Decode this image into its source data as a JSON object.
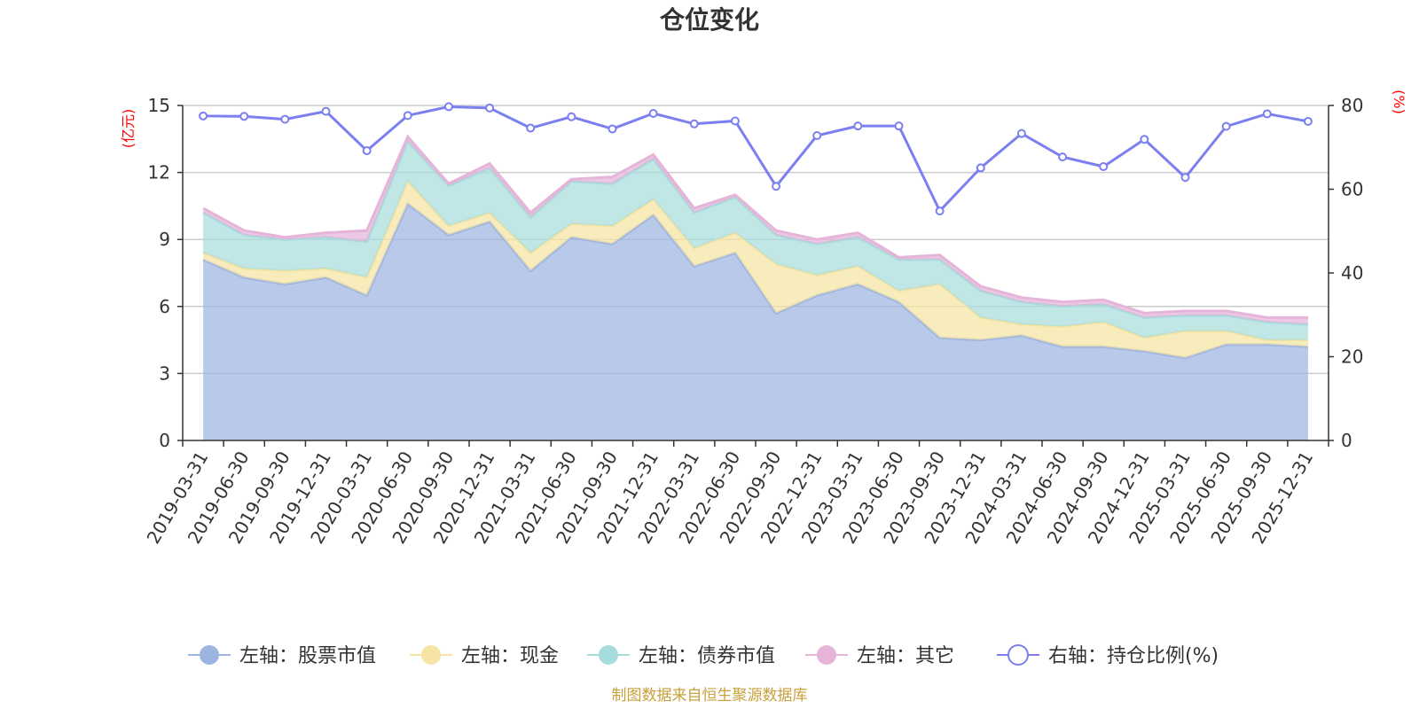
{
  "chart_data": {
    "type": "area",
    "title": "仓位变化",
    "left_axis": {
      "unit": "(亿元)",
      "min": 0,
      "max": 15,
      "ticks": [
        0,
        3,
        6,
        9,
        12,
        15
      ]
    },
    "right_axis": {
      "unit": "(%)",
      "min": 0,
      "max": 80,
      "ticks": [
        0,
        20,
        40,
        60,
        80
      ]
    },
    "categories": [
      "2019-03-31",
      "2019-06-30",
      "2019-09-30",
      "2019-12-31",
      "2020-03-31",
      "2020-06-30",
      "2020-09-30",
      "2020-12-31",
      "2021-03-31",
      "2021-06-30",
      "2021-09-30",
      "2021-12-31",
      "2022-03-31",
      "2022-06-30",
      "2022-09-30",
      "2022-12-31",
      "2023-03-31",
      "2023-06-30",
      "2023-09-30",
      "2023-12-31",
      "2024-03-31",
      "2024-06-30",
      "2024-09-30",
      "2024-12-31",
      "2025-03-31",
      "2025-06-30",
      "2025-09-30",
      "2025-12-31"
    ],
    "series": [
      {
        "name": "左轴：股票市值",
        "axis": "left",
        "stacked": true,
        "color": "#9db4e0",
        "values": [
          8.1,
          7.3,
          7.0,
          7.3,
          6.5,
          10.6,
          9.2,
          9.8,
          7.6,
          9.1,
          8.8,
          10.1,
          7.8,
          8.4,
          5.7,
          6.5,
          7.0,
          6.2,
          4.6,
          4.5,
          4.7,
          4.2,
          4.2,
          4.0,
          3.7,
          4.3,
          4.3,
          4.2
        ]
      },
      {
        "name": "左轴：现金",
        "axis": "left",
        "stacked": true,
        "color": "#f5e4a3",
        "values": [
          0.3,
          0.4,
          0.6,
          0.4,
          0.8,
          1.0,
          0.4,
          0.4,
          0.8,
          0.6,
          0.8,
          0.7,
          0.8,
          0.9,
          2.2,
          0.9,
          0.8,
          0.5,
          2.4,
          1.0,
          0.5,
          0.9,
          1.1,
          0.6,
          1.2,
          0.6,
          0.2,
          0.3
        ]
      },
      {
        "name": "左轴：债券市值",
        "axis": "left",
        "stacked": true,
        "color": "#a7dcdc",
        "values": [
          1.8,
          1.5,
          1.4,
          1.4,
          1.6,
          1.8,
          1.8,
          2.0,
          1.6,
          1.9,
          1.9,
          1.8,
          1.6,
          1.6,
          1.3,
          1.4,
          1.3,
          1.4,
          1.1,
          1.2,
          1.0,
          0.9,
          0.8,
          0.9,
          0.7,
          0.7,
          0.8,
          0.7
        ]
      },
      {
        "name": "左轴：其它",
        "axis": "left",
        "stacked": true,
        "color": "#e6b4d9",
        "values": [
          0.2,
          0.2,
          0.1,
          0.2,
          0.5,
          0.2,
          0.1,
          0.2,
          0.2,
          0.1,
          0.3,
          0.2,
          0.2,
          0.1,
          0.2,
          0.2,
          0.2,
          0.1,
          0.2,
          0.2,
          0.2,
          0.2,
          0.2,
          0.2,
          0.2,
          0.2,
          0.2,
          0.3
        ]
      },
      {
        "name": "右轴：持仓比例(%)",
        "axis": "right",
        "stacked": false,
        "color": "#7b7ff0",
        "values": [
          77.5,
          77.4,
          76.7,
          78.6,
          69.2,
          77.6,
          79.7,
          79.4,
          74.6,
          77.3,
          74.4,
          78.1,
          75.6,
          76.3,
          60.7,
          72.8,
          75.1,
          75.1,
          54.8,
          65.1,
          73.3,
          67.7,
          65.4,
          71.9,
          62.8,
          75.0,
          78.0,
          76.2
        ]
      }
    ],
    "grid": true,
    "legend": "bottom",
    "source": "制图数据来自恒生聚源数据库"
  }
}
